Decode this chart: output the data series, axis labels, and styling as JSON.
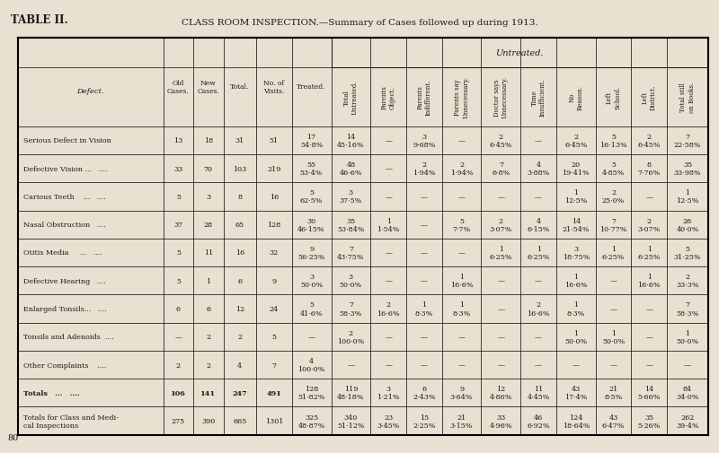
{
  "title_left": "TABLE II.",
  "title_center": "CLASS ROOM INSPECTION.—Summary of Cases followed up during 1913.",
  "bg_color": "#e8e0d0",
  "text_color": "#1a1a1a",
  "col_headers": [
    "Defect.",
    "Old\nCases.",
    "New\nCases.",
    "Total.",
    "No. of\nVisits.",
    "Treated.",
    "Total\nUntreated.",
    "Parents\nObject.",
    "Parents\nIndifferent.",
    "Parents say\nUnnecessary.",
    "Doctor says\nUnnecessary.",
    "Time\nInsufficient.",
    "No\nReason.",
    "Left\nSchool.",
    "Left\nDistrict.",
    "Total still\non Books."
  ],
  "untreated_header": "Untreated.",
  "rows": [
    {
      "defect": "Serious Defect in Vision",
      "old": "13",
      "new": "18",
      "total": "31",
      "visits": "51",
      "treated": "17\n54·8%",
      "total_untr": "14\n45·16%",
      "par_obj": "—",
      "par_ind": "3\n9·68%",
      "par_say": "—",
      "doc_say": "2\n6·45%",
      "time": "—",
      "no_reason": "2\n6·45%",
      "left_sch": "5\n16·13%",
      "left_dist": "2\n6·45%",
      "still_books": "7\n22·58%"
    },
    {
      "defect": "Defective Vision ...   ....",
      "old": "33",
      "new": "70",
      "total": "103",
      "visits": "219",
      "treated": "55\n53·4%",
      "total_untr": "48\n46·6%",
      "par_obj": "—",
      "par_ind": "2\n1·94%",
      "par_say": "2\n1·94%",
      "doc_say": "7\n6·8%",
      "time": "4\n3·88%",
      "no_reason": "20\n19·41%",
      "left_sch": "5\n4·85%",
      "left_dist": "8\n7·76%",
      "still_books": "35\n33·98%"
    },
    {
      "defect": "Carious Teeth    ...   ....",
      "old": "5",
      "new": "3",
      "total": "8",
      "visits": "16",
      "treated": "5\n62·5%",
      "total_untr": "3\n37·5%",
      "par_obj": "—",
      "par_ind": "—",
      "par_say": "—",
      "doc_say": "—",
      "time": "—",
      "no_reason": "1\n12·5%",
      "left_sch": "2\n25·0%",
      "left_dist": "—",
      "still_books": "1\n12·5%"
    },
    {
      "defect": "Nasal Obstruction   ....",
      "old": "37",
      "new": "28",
      "total": "65",
      "visits": "128",
      "treated": "30\n46·15%",
      "total_untr": "35\n53·84%",
      "par_obj": "1\n1·54%",
      "par_ind": "—",
      "par_say": "5\n7·7%",
      "doc_say": "2\n3·07%",
      "time": "4\n6·15%",
      "no_reason": "14\n21·54%",
      "left_sch": "7\n10·77%",
      "left_dist": "2\n3·07%",
      "still_books": "26\n40·0%"
    },
    {
      "defect": "Otitis Media     ...   ....",
      "old": "5",
      "new": "11",
      "total": "16",
      "visits": "32",
      "treated": "9\n56·25%",
      "total_untr": "7\n43·75%",
      "par_obj": "—",
      "par_ind": "—",
      "par_say": "—",
      "doc_say": "1\n6·25%",
      "time": "1\n6·25%",
      "no_reason": "3\n18·75%",
      "left_sch": "1\n6·25%",
      "left_dist": "1\n6·25%",
      "still_books": "5\n31·25%"
    },
    {
      "defect": "Defective Hearing   ....",
      "old": "5",
      "new": "1",
      "total": "6",
      "visits": "9",
      "treated": "3\n50·0%",
      "total_untr": "3\n50·0%",
      "par_obj": "—",
      "par_ind": "—",
      "par_say": "1\n16·6%",
      "doc_say": "—",
      "time": "—",
      "no_reason": "1\n16·6%",
      "left_sch": "—",
      "left_dist": "1\n16·6%",
      "still_books": "2\n33·3%"
    },
    {
      "defect": "Enlarged Tonsils...   ....",
      "old": "6",
      "new": "6",
      "total": "12",
      "visits": "24",
      "treated": "5\n41·6%",
      "total_untr": "7\n58·3%",
      "par_obj": "2\n16·6%",
      "par_ind": "1\n8·3%",
      "par_say": "1\n8·3%",
      "doc_say": "—",
      "time": "2\n16·6%",
      "no_reason": "1\n8·3%",
      "left_sch": "—",
      "left_dist": "—",
      "still_books": "7\n58·3%"
    },
    {
      "defect": "Tonsils and Adenoids  ....",
      "old": "—",
      "new": "2",
      "total": "2",
      "visits": "5",
      "treated": "—",
      "total_untr": "2\n100·0%",
      "par_obj": "—",
      "par_ind": "—",
      "par_say": "—",
      "doc_say": "—",
      "time": "—",
      "no_reason": "1\n50·0%",
      "left_sch": "1\n50·0%",
      "left_dist": "—",
      "still_books": "1\n50·0%"
    },
    {
      "defect": "Other Complaints    ....",
      "old": "2",
      "new": "2",
      "total": "4",
      "visits": "7",
      "treated": "4\n100·0%",
      "total_untr": "—",
      "par_obj": "—",
      "par_ind": "—",
      "par_say": "—",
      "doc_say": "—",
      "time": "—",
      "no_reason": "—",
      "left_sch": "—",
      "left_dist": "—",
      "still_books": "—"
    },
    {
      "defect": "Totals   ...   ....",
      "old": "106",
      "new": "141",
      "total": "247",
      "visits": "491",
      "treated": "128\n51·82%",
      "total_untr": "119\n48·18%",
      "par_obj": "3\n1·21%",
      "par_ind": "6\n2·43%",
      "par_say": "9\n3·64%",
      "doc_say": "12\n4·86%",
      "time": "11\n4·45%",
      "no_reason": "43\n17·4%",
      "left_sch": "21\n8·5%",
      "left_dist": "14\n5·66%",
      "still_books": "84\n34·0%"
    },
    {
      "defect": "Totals for Class and Medi-\ncal Inspections",
      "old": "275",
      "new": "390",
      "total": "665",
      "visits": "1301",
      "treated": "325\n48·87%",
      "total_untr": "340\n51·12%",
      "par_obj": "23\n3·45%",
      "par_ind": "15\n2·25%",
      "par_say": "21\n3·15%",
      "doc_say": "33\n4·96%",
      "time": "46\n6·92%",
      "no_reason": "124\n18·64%",
      "left_sch": "43\n6·47%",
      "left_dist": "35\n5·26%",
      "still_books": "262\n39·4%"
    }
  ],
  "is_bold_row": [
    false,
    false,
    false,
    false,
    false,
    false,
    false,
    false,
    false,
    true,
    false
  ],
  "page_num": "80"
}
